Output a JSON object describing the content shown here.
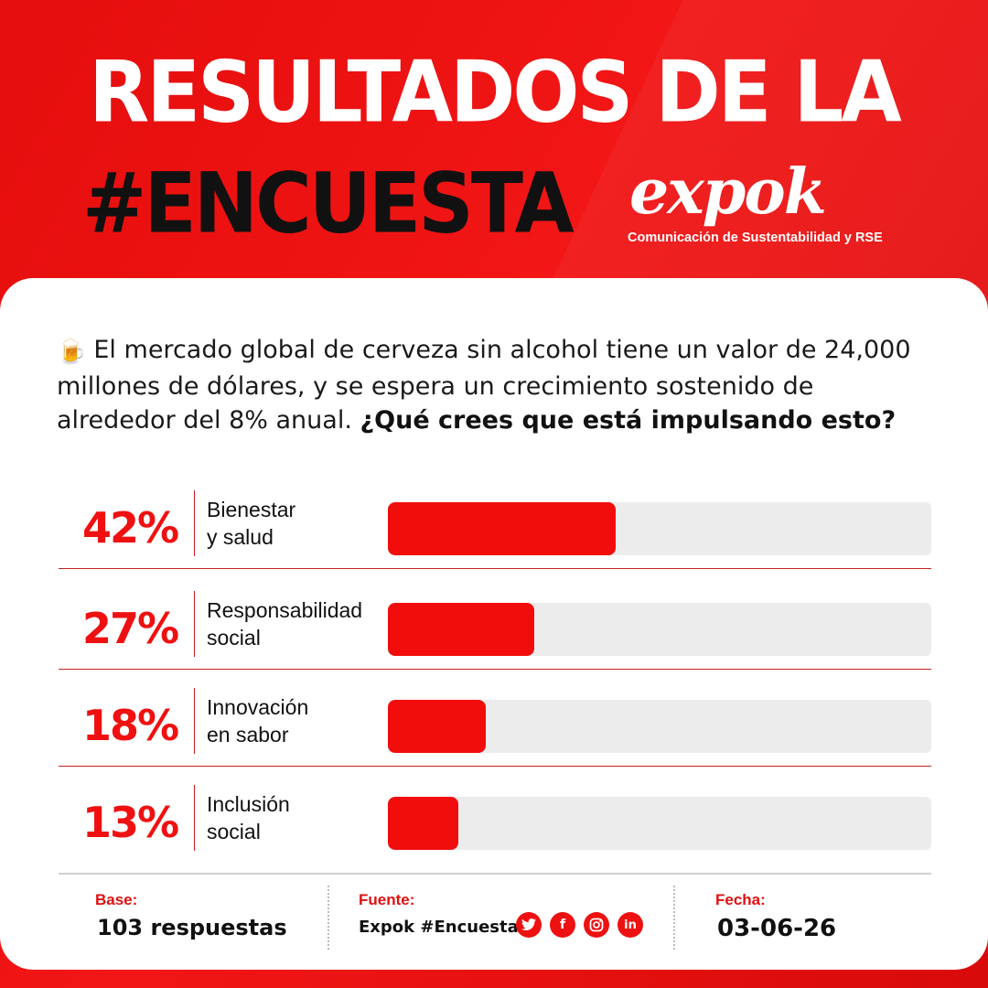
{
  "header": {
    "title_line1": "RESULTADOS DE LA",
    "title_line2": "#ENCUESTA",
    "logo_text": "expok",
    "logo_subtitle": "Comunicación de Sustentabilidad y RSE"
  },
  "question": {
    "icon": "beer-mug-icon",
    "text": "El mercado global de cerveza sin alcohol tiene un valor de 24,000 millones de dólares, y se espera un crecimiento sostenido de alrededor del 8% anual.",
    "bold": "¿Qué crees que está impulsando esto?"
  },
  "colors": {
    "accent": "#f20d0d",
    "track": "#ececec",
    "dark": "#111111"
  },
  "chart_data": {
    "type": "bar",
    "categories": [
      "Bienestar\ny salud",
      "Responsabilidad\nsocial",
      "Innovación\nen sabor",
      "Inclusión\nsocial"
    ],
    "values": [
      42,
      27,
      18,
      13
    ],
    "value_labels": [
      "42%",
      "27%",
      "18%",
      "13%"
    ],
    "ylim": [
      0,
      100
    ]
  },
  "footer": {
    "base_label": "Base:",
    "base_value": "103 respuestas",
    "source_label": "Fuente:",
    "source_value": "Expok #Encuesta",
    "date_label": "Fecha:",
    "date_value": "03-06-26",
    "social_icons": [
      "twitter-icon",
      "facebook-icon",
      "instagram-icon",
      "linkedin-icon"
    ]
  }
}
